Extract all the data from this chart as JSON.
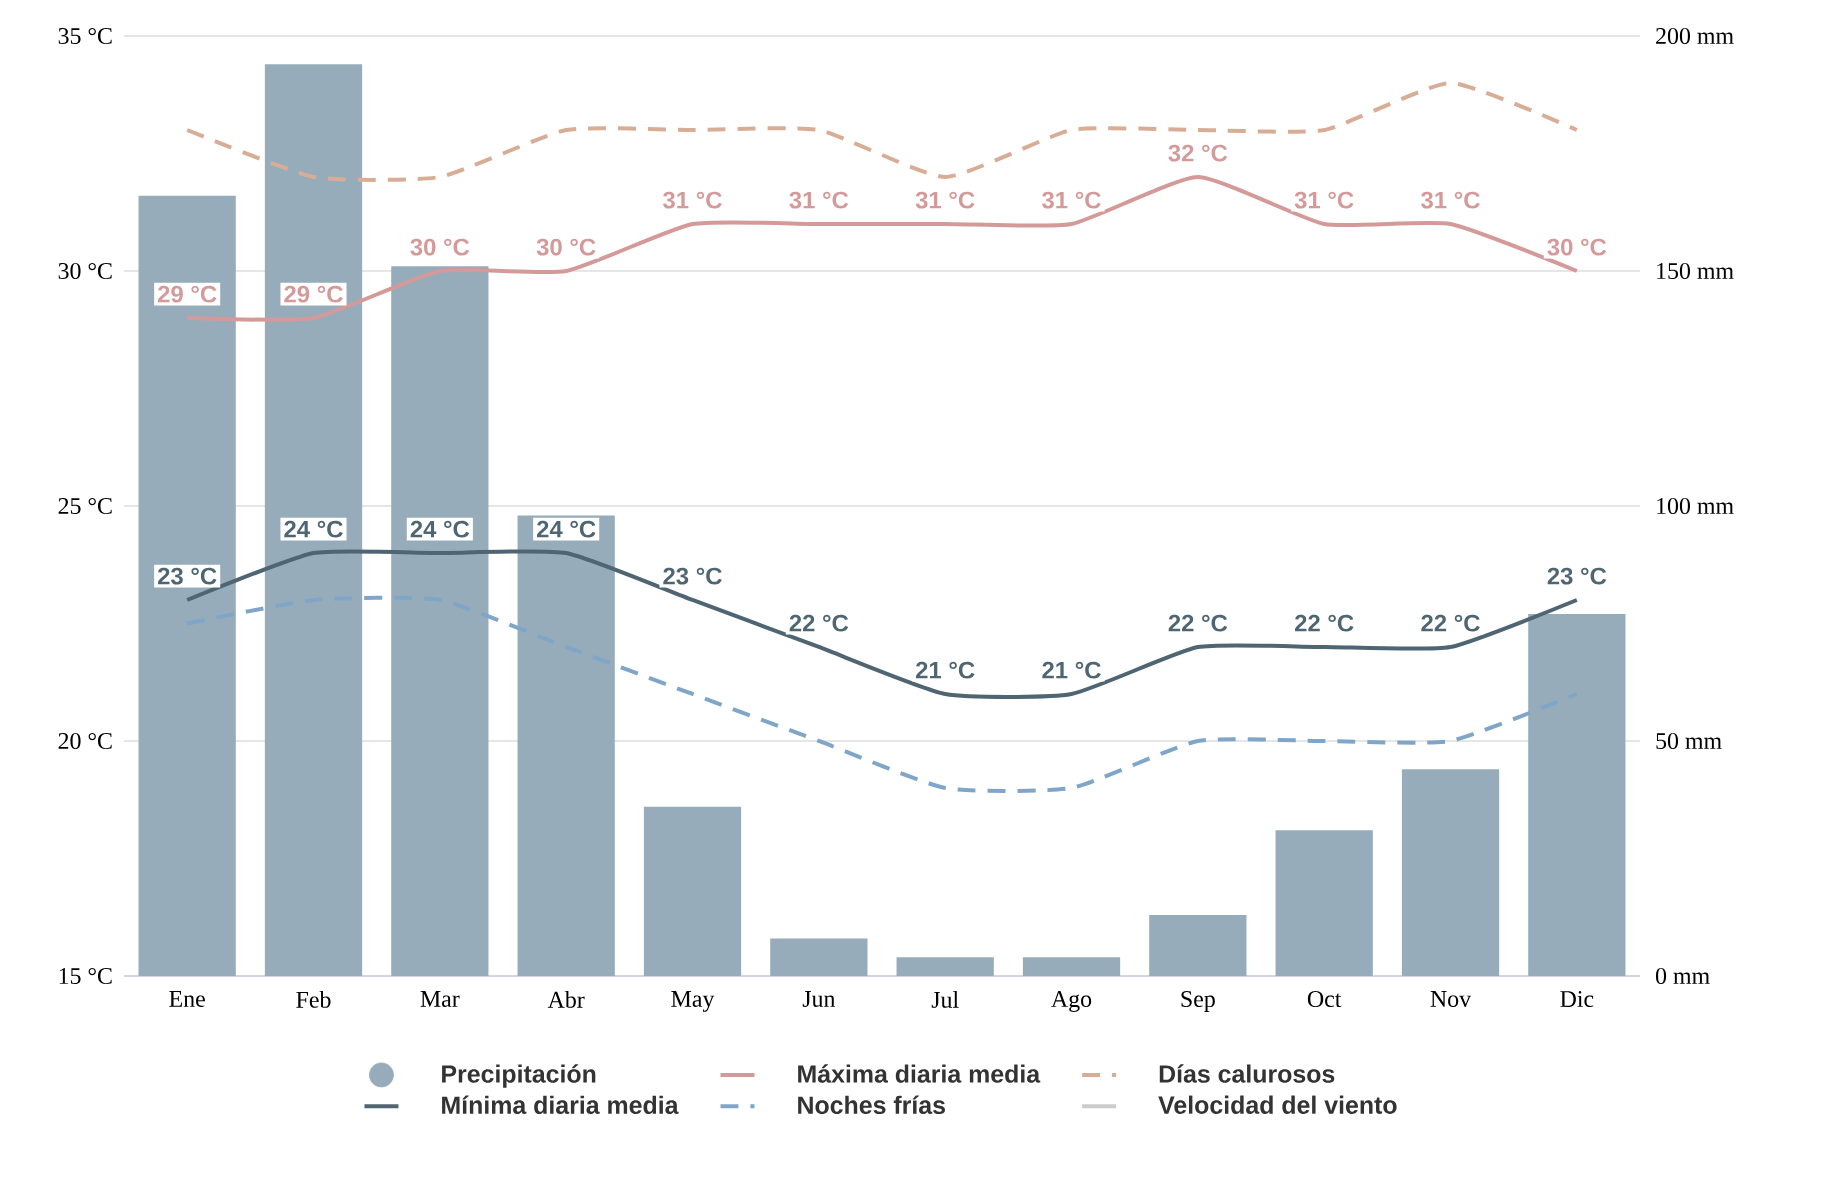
{
  "chart_data": {
    "type": "line",
    "categories": [
      "Ene",
      "Feb",
      "Mar",
      "Abr",
      "May",
      "Jun",
      "Jul",
      "Ago",
      "Sep",
      "Oct",
      "Nov",
      "Dic"
    ],
    "series": [
      {
        "name": "Precipitación",
        "type": "bar",
        "axis": "y2",
        "color": "#97acba",
        "values": [
          166,
          194,
          151,
          98,
          36,
          8,
          4,
          4,
          13,
          31,
          44,
          77
        ]
      },
      {
        "name": "Máxima diaria media",
        "color": "#d49a9a",
        "line_style": "solid",
        "values": [
          29,
          29,
          30,
          30,
          31,
          31,
          31,
          31,
          32,
          31,
          31,
          30
        ],
        "value_labels": [
          "29 °C",
          "29 °C",
          "30 °C",
          "30 °C",
          "31 °C",
          "31 °C",
          "31 °C",
          "31 °C",
          "32 °C",
          "31 °C",
          "31 °C",
          "30 °C"
        ]
      },
      {
        "name": "Días calurosos",
        "color": "#d8ad95",
        "line_style": "dashed",
        "values": [
          33,
          32,
          32,
          33,
          33,
          33,
          32,
          33,
          33,
          33,
          34,
          33
        ]
      },
      {
        "name": "Mínima diaria media",
        "color": "#4f6672",
        "line_style": "solid",
        "values": [
          23,
          24,
          24,
          24,
          23,
          22,
          21,
          21,
          22,
          22,
          22,
          23
        ],
        "value_labels": [
          "23 °C",
          "24 °C",
          "24 °C",
          "24 °C",
          "23 °C",
          "22 °C",
          "21 °C",
          "21 °C",
          "22 °C",
          "22 °C",
          "22 °C",
          "23 °C"
        ]
      },
      {
        "name": "Noches frías",
        "color": "#7fa6c8",
        "line_style": "dashed",
        "values": [
          22.5,
          23,
          23,
          22,
          21,
          20,
          19,
          19,
          20,
          20,
          20,
          21
        ]
      },
      {
        "name": "Velocidad del viento",
        "color": "#cccccc",
        "line_style": "solid",
        "values": [
          null,
          null,
          null,
          null,
          null,
          null,
          null,
          null,
          null,
          null,
          null,
          null
        ]
      }
    ],
    "ylim": [
      15,
      35
    ],
    "yticks": [
      {
        "value": 15,
        "label": "15 °C"
      },
      {
        "value": 20,
        "label": "20 °C"
      },
      {
        "value": 25,
        "label": "25 °C"
      },
      {
        "value": 30,
        "label": "30 °C"
      },
      {
        "value": 35,
        "label": "35 °C"
      }
    ],
    "y2lim": [
      0,
      200
    ],
    "y2ticks": [
      {
        "value": 0,
        "label": "0 mm"
      },
      {
        "value": 50,
        "label": "50 mm"
      },
      {
        "value": 100,
        "label": "100 mm"
      },
      {
        "value": 150,
        "label": "150 mm"
      },
      {
        "value": 200,
        "label": "200 mm"
      }
    ],
    "grid": "y",
    "legend": "bottom"
  }
}
